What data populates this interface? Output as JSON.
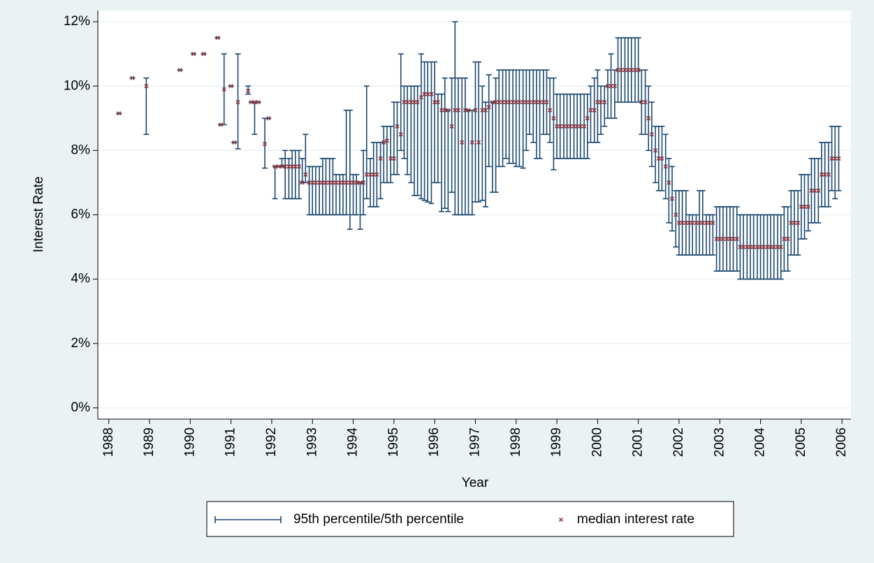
{
  "chart_data": {
    "type": "errorbar",
    "x_label": "Year",
    "y_label": "Interest Rate",
    "x": [
      1988.25,
      1988.58,
      1988.92,
      1989.75,
      1990.08,
      1990.33,
      1990.67,
      1990.75,
      1990.83,
      1991.0,
      1991.08,
      1991.17,
      1991.42,
      1991.5,
      1991.58,
      1991.67,
      1991.83,
      1991.92,
      1992.08,
      1992.17,
      1992.25,
      1992.33,
      1992.42,
      1992.5,
      1992.58,
      1992.67,
      1992.75,
      1992.83,
      1992.92,
      1993.0,
      1993.08,
      1993.17,
      1993.25,
      1993.33,
      1993.42,
      1993.5,
      1993.58,
      1993.67,
      1993.75,
      1993.83,
      1993.92,
      1994.0,
      1994.08,
      1994.17,
      1994.25,
      1994.33,
      1994.42,
      1994.5,
      1994.58,
      1994.67,
      1994.75,
      1994.83,
      1994.92,
      1995.0,
      1995.08,
      1995.17,
      1995.25,
      1995.33,
      1995.42,
      1995.5,
      1995.58,
      1995.67,
      1995.75,
      1995.83,
      1995.92,
      1996.0,
      1996.08,
      1996.17,
      1996.25,
      1996.33,
      1996.42,
      1996.5,
      1996.58,
      1996.67,
      1996.75,
      1996.83,
      1996.92,
      1997.0,
      1997.08,
      1997.17,
      1997.25,
      1997.33,
      1997.42,
      1997.5,
      1997.58,
      1997.67,
      1997.75,
      1997.83,
      1997.92,
      1998.0,
      1998.08,
      1998.17,
      1998.25,
      1998.33,
      1998.42,
      1998.5,
      1998.58,
      1998.67,
      1998.75,
      1998.83,
      1998.92,
      1999.0,
      1999.08,
      1999.17,
      1999.25,
      1999.33,
      1999.42,
      1999.5,
      1999.58,
      1999.67,
      1999.75,
      1999.83,
      1999.92,
      2000.0,
      2000.08,
      2000.17,
      2000.25,
      2000.33,
      2000.42,
      2000.5,
      2000.58,
      2000.67,
      2000.75,
      2000.83,
      2000.92,
      2001.0,
      2001.08,
      2001.17,
      2001.25,
      2001.33,
      2001.42,
      2001.5,
      2001.58,
      2001.67,
      2001.75,
      2001.83,
      2001.92,
      2002.0,
      2002.08,
      2002.17,
      2002.25,
      2002.33,
      2002.42,
      2002.5,
      2002.58,
      2002.67,
      2002.75,
      2002.83,
      2002.92,
      2003.0,
      2003.08,
      2003.17,
      2003.25,
      2003.33,
      2003.42,
      2003.5,
      2003.58,
      2003.67,
      2003.75,
      2003.83,
      2003.92,
      2004.0,
      2004.08,
      2004.17,
      2004.25,
      2004.33,
      2004.42,
      2004.5,
      2004.58,
      2004.67,
      2004.75,
      2004.83,
      2004.92,
      2005.0,
      2005.08,
      2005.17,
      2005.25,
      2005.33,
      2005.42,
      2005.5,
      2005.58,
      2005.67,
      2005.75,
      2005.83,
      2005.92
    ],
    "series": [
      {
        "name": "95th percentile/5th percentile",
        "color": "#1a476f",
        "low": [
          9.15,
          10.25,
          8.5,
          10.5,
          11,
          11,
          11.5,
          8.8,
          8.8,
          10,
          8.25,
          8.05,
          9.75,
          9.5,
          8.5,
          9.5,
          7.45,
          9,
          6.5,
          7.5,
          7.5,
          6.5,
          6.5,
          6.5,
          6.5,
          6.5,
          7,
          7,
          6,
          6,
          6,
          6,
          6,
          6,
          6,
          6,
          6,
          6,
          6,
          6,
          5.55,
          6,
          6,
          5.55,
          6,
          6.5,
          6.25,
          6.25,
          6.25,
          6.5,
          7,
          7,
          7,
          7.25,
          7.25,
          8,
          7.75,
          7.25,
          7,
          6.6,
          6.6,
          6.5,
          6.45,
          6.4,
          6.35,
          7,
          7,
          6.1,
          6.2,
          6.1,
          6.7,
          6,
          6,
          6,
          6,
          6,
          6,
          6.4,
          6.4,
          6.45,
          6.25,
          7.5,
          6.7,
          6.7,
          7.5,
          7.5,
          7.75,
          7.6,
          7.6,
          7.5,
          7.5,
          7.45,
          8,
          8.5,
          8.25,
          7.75,
          7.75,
          8.5,
          8.5,
          8.25,
          7.4,
          7.75,
          7.75,
          7.75,
          7.75,
          7.75,
          7.75,
          7.75,
          7.75,
          7.75,
          7.75,
          8.25,
          8.25,
          8.25,
          8.5,
          8.75,
          9,
          9,
          9,
          9.5,
          9.5,
          9.5,
          9.5,
          9.5,
          9.5,
          9.5,
          8.5,
          8.5,
          8,
          7.5,
          7,
          6.75,
          6.75,
          6.5,
          5.75,
          5.5,
          5,
          4.75,
          4.75,
          4.75,
          4.75,
          4.75,
          4.75,
          4.75,
          4.75,
          4.75,
          4.75,
          4.75,
          4.25,
          4.25,
          4.25,
          4.25,
          4.25,
          4.25,
          4.25,
          4,
          4,
          4,
          4,
          4,
          4,
          4,
          4,
          4,
          4,
          4,
          4,
          4,
          4.25,
          4.25,
          4.75,
          4.75,
          4.75,
          5.25,
          5.25,
          5.5,
          5.75,
          5.75,
          5.75,
          6.25,
          6.25,
          6.25,
          6.75,
          6.5,
          6.75
        ],
        "high": [
          9.15,
          10.25,
          10.25,
          10.5,
          11,
          11,
          11.5,
          8.8,
          11,
          10,
          8.25,
          11,
          10,
          9.5,
          9.5,
          9.5,
          9,
          9,
          7.5,
          7.5,
          7.75,
          8,
          7.75,
          8,
          8,
          8,
          7.75,
          8.5,
          7.5,
          7.5,
          7.5,
          7.5,
          7.75,
          7.75,
          7.75,
          7.75,
          7.25,
          7.25,
          7.25,
          9.25,
          9.25,
          7.25,
          7.25,
          7,
          8,
          10,
          7.75,
          8.25,
          8.25,
          8.25,
          8.75,
          8.75,
          8.75,
          9.5,
          9.5,
          11,
          10,
          10,
          10,
          10,
          10,
          11,
          10.75,
          10.75,
          10.75,
          10.75,
          9.75,
          9.75,
          10.25,
          9.25,
          10.25,
          12,
          10.25,
          10.25,
          10.25,
          9.25,
          9.25,
          10.75,
          10.75,
          10,
          9.5,
          10.35,
          9.5,
          10.25,
          10.5,
          10.5,
          10.5,
          10.5,
          10.5,
          10.5,
          10.5,
          10.5,
          10.5,
          10.5,
          10.5,
          10.5,
          10.5,
          10.5,
          10.5,
          10.25,
          10.25,
          9.75,
          9.75,
          9.75,
          9.75,
          9.75,
          9.75,
          9.75,
          9.75,
          9.75,
          9.75,
          10,
          10.25,
          10.5,
          10,
          10,
          10.5,
          11,
          10.5,
          11.5,
          11.5,
          11.5,
          11.5,
          11.5,
          11.5,
          11.5,
          10.5,
          10.5,
          10,
          9.5,
          8.75,
          8.75,
          8.75,
          8.5,
          7.75,
          7.5,
          6.75,
          6.75,
          6.75,
          6.75,
          6,
          6,
          6,
          6.75,
          6.75,
          6,
          6,
          6,
          6.25,
          6.25,
          6.25,
          6.25,
          6.25,
          6.25,
          6.25,
          6,
          6,
          6,
          6,
          6,
          6,
          6,
          6,
          6,
          6,
          6,
          6,
          6,
          6.25,
          6.25,
          6.75,
          6.75,
          6.75,
          7.25,
          7.25,
          7.25,
          7.75,
          7.75,
          7.75,
          8.25,
          8.25,
          8.25,
          8.75,
          8.75,
          8.75
        ]
      },
      {
        "name": "median interest rate",
        "color": "#90353b",
        "values": [
          9.15,
          10.25,
          10,
          10.5,
          11,
          11,
          11.5,
          8.8,
          9.9,
          10,
          8.25,
          9.5,
          9.85,
          9.5,
          9.5,
          9.5,
          8.2,
          9,
          7.5,
          7.5,
          7.5,
          7.5,
          7.5,
          7.5,
          7.5,
          7.5,
          7,
          7.25,
          7,
          7,
          7,
          7,
          7,
          7,
          7,
          7,
          7,
          7,
          7,
          7,
          7,
          7,
          7,
          7,
          7,
          7.25,
          7.25,
          7.25,
          7.25,
          7.75,
          8.25,
          8.3,
          7.75,
          7.75,
          8.75,
          8.5,
          9.5,
          9.5,
          9.5,
          9.5,
          9.5,
          9.65,
          9.75,
          9.75,
          9.75,
          9.5,
          9.5,
          9.25,
          9.25,
          9.25,
          8.75,
          9.25,
          9.25,
          8.25,
          9.25,
          9.25,
          8.25,
          9.25,
          8.25,
          9.25,
          9.25,
          9.35,
          9.5,
          9.5,
          9.5,
          9.5,
          9.5,
          9.5,
          9.5,
          9.5,
          9.5,
          9.5,
          9.5,
          9.5,
          9.5,
          9.5,
          9.5,
          9.5,
          9.5,
          9.25,
          9,
          8.75,
          8.75,
          8.75,
          8.75,
          8.75,
          8.75,
          8.75,
          8.75,
          8.75,
          9,
          9.25,
          9.25,
          9.5,
          9.5,
          9.5,
          10,
          10,
          10,
          10.5,
          10.5,
          10.5,
          10.5,
          10.5,
          10.5,
          10.5,
          9.5,
          9.5,
          9,
          8.5,
          8,
          7.75,
          7.75,
          7.5,
          7,
          6.5,
          6,
          5.75,
          5.75,
          5.75,
          5.75,
          5.75,
          5.75,
          5.75,
          5.75,
          5.75,
          5.75,
          5.75,
          5.25,
          5.25,
          5.25,
          5.25,
          5.25,
          5.25,
          5.25,
          5,
          5,
          5,
          5,
          5,
          5,
          5,
          5,
          5,
          5,
          5,
          5,
          5,
          5.25,
          5.25,
          5.75,
          5.75,
          5.75,
          6.25,
          6.25,
          6.25,
          6.75,
          6.75,
          6.75,
          7.25,
          7.25,
          7.25,
          7.75,
          7.75,
          7.75
        ]
      }
    ],
    "xlim": [
      1987.73,
      2006.22
    ],
    "ylim": [
      -0.35,
      12.35
    ],
    "xticks": [
      1988,
      1989,
      1990,
      1991,
      1992,
      1993,
      1994,
      1995,
      1996,
      1997,
      1998,
      1999,
      2000,
      2001,
      2002,
      2003,
      2004,
      2005,
      2006
    ],
    "yticks": [
      {
        "value": 0,
        "label": "0%"
      },
      {
        "value": 2,
        "label": "2%"
      },
      {
        "value": 4,
        "label": "4%"
      },
      {
        "value": 6,
        "label": "6%"
      },
      {
        "value": 8,
        "label": "8%"
      },
      {
        "value": 10,
        "label": "10%"
      },
      {
        "value": 12,
        "label": "12%"
      }
    ],
    "grid": true
  }
}
